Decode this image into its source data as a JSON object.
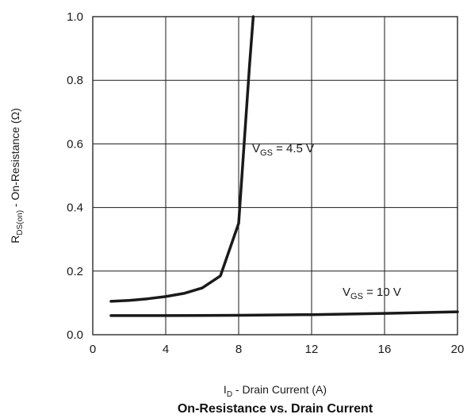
{
  "chart_data": {
    "type": "line",
    "title": "On-Resistance vs. Drain Current",
    "xlabel": {
      "main": "I",
      "sub": "D",
      "rest": " - Drain Current (A)"
    },
    "ylabel": {
      "main": "R",
      "sub": "DS(on)",
      "rest": " - On-Resistance (Ω)"
    },
    "xlim": [
      0,
      20
    ],
    "ylim": [
      0,
      1.0
    ],
    "x_ticks": [
      0,
      4,
      8,
      12,
      16,
      20
    ],
    "x_tick_labels": [
      "0",
      "4",
      "8",
      "12",
      "16",
      "20"
    ],
    "y_ticks": [
      0.0,
      0.2,
      0.4,
      0.6,
      0.8,
      1.0
    ],
    "y_tick_labels": [
      "0.0",
      "0.2",
      "0.4",
      "0.6",
      "0.8",
      "1.0"
    ],
    "grid": true,
    "series": [
      {
        "name": {
          "main": "V",
          "sub": "GS",
          "rest": " = 4.5 V"
        },
        "points": [
          [
            1,
            0.105
          ],
          [
            2,
            0.108
          ],
          [
            3,
            0.113
          ],
          [
            4,
            0.12
          ],
          [
            5,
            0.13
          ],
          [
            6,
            0.147
          ],
          [
            7,
            0.185
          ],
          [
            8,
            0.35
          ],
          [
            8.3,
            0.6
          ],
          [
            8.6,
            0.85
          ],
          [
            8.8,
            1.0
          ]
        ]
      },
      {
        "name": {
          "main": "V",
          "sub": "GS",
          "rest": " = 10 V"
        },
        "points": [
          [
            1,
            0.06
          ],
          [
            4,
            0.06
          ],
          [
            8,
            0.061
          ],
          [
            12,
            0.063
          ],
          [
            16,
            0.067
          ],
          [
            20,
            0.072
          ]
        ]
      }
    ]
  }
}
